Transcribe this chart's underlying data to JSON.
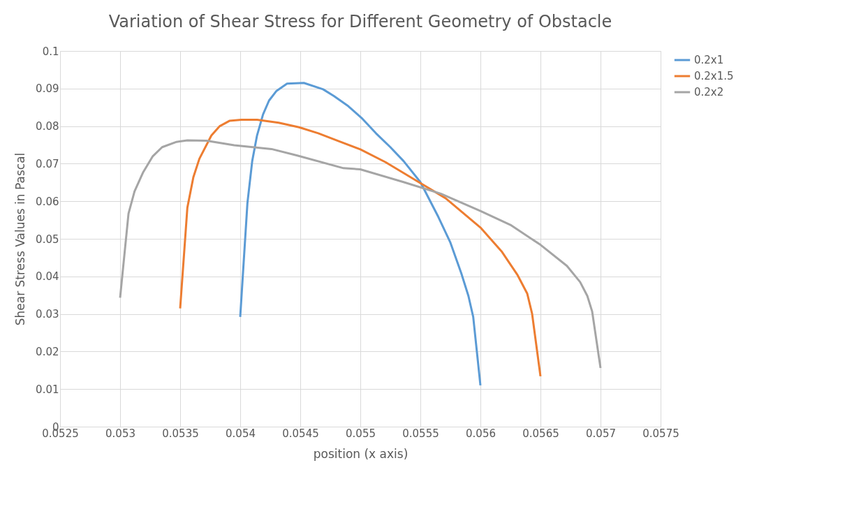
{
  "chart_data": {
    "type": "line",
    "title": "Variation of Shear Stress for Different Geometry of Obstacle",
    "xlabel": "position (x axis)",
    "ylabel": "Shear Stress Values in Pascal",
    "xlim": [
      0.0525,
      0.0575
    ],
    "xticks": [
      0.0525,
      0.053,
      0.0535,
      0.054,
      0.0545,
      0.055,
      0.0555,
      0.056,
      0.0565,
      0.057,
      0.0575
    ],
    "ylim": [
      0,
      0.1
    ],
    "yticks": [
      0,
      0.01,
      0.02,
      0.03,
      0.04,
      0.05,
      0.06,
      0.07,
      0.08,
      0.09,
      0.1
    ],
    "grid": true,
    "legend": "right",
    "marker": "none",
    "line_style": "solid",
    "series": [
      {
        "name": "0.2x1",
        "color": "#5b9bd5",
        "x": [
          0.054,
          0.05406,
          0.0541,
          0.05414,
          0.05419,
          0.05424,
          0.0543,
          0.05439,
          0.05453,
          0.05469,
          0.05478,
          0.0549,
          0.05501,
          0.05513,
          0.05525,
          0.05536,
          0.0555,
          0.05565,
          0.05575,
          0.05584,
          0.0559,
          0.05594,
          0.056
        ],
        "values": [
          0.0292,
          0.0595,
          0.0707,
          0.0775,
          0.0831,
          0.0868,
          0.0893,
          0.0913,
          0.0915,
          0.0898,
          0.088,
          0.0853,
          0.0822,
          0.0781,
          0.0744,
          0.0707,
          0.0651,
          0.0558,
          0.049,
          0.0409,
          0.0348,
          0.0292,
          0.011
        ]
      },
      {
        "name": "0.2x1.5",
        "color": "#ed7d31",
        "x": [
          0.0535,
          0.05356,
          0.05361,
          0.05366,
          0.05376,
          0.05383,
          0.05391,
          0.05401,
          0.05414,
          0.05432,
          0.05449,
          0.05465,
          0.05482,
          0.055,
          0.05521,
          0.05544,
          0.05571,
          0.056,
          0.05618,
          0.05631,
          0.05639,
          0.05643,
          0.0565
        ],
        "values": [
          0.0315,
          0.0583,
          0.0664,
          0.0713,
          0.0775,
          0.08,
          0.0814,
          0.0817,
          0.0817,
          0.0809,
          0.0797,
          0.0781,
          0.076,
          0.0738,
          0.0704,
          0.066,
          0.0608,
          0.053,
          0.0465,
          0.0403,
          0.0354,
          0.0301,
          0.0134
        ]
      },
      {
        "name": "0.2x2",
        "color": "#a5a5a5",
        "x": [
          0.053,
          0.05307,
          0.05312,
          0.05319,
          0.05327,
          0.05335,
          0.05347,
          0.05356,
          0.05372,
          0.05395,
          0.05426,
          0.05447,
          0.05486,
          0.055,
          0.05536,
          0.05567,
          0.056,
          0.05625,
          0.0565,
          0.05672,
          0.05683,
          0.05689,
          0.05693,
          0.057
        ],
        "values": [
          0.0343,
          0.0567,
          0.0626,
          0.0676,
          0.0719,
          0.0744,
          0.0758,
          0.0762,
          0.0761,
          0.0749,
          0.0739,
          0.0722,
          0.0688,
          0.0685,
          0.0651,
          0.062,
          0.0574,
          0.0537,
          0.0484,
          0.0428,
          0.0385,
          0.0348,
          0.0307,
          0.0156
        ]
      }
    ]
  }
}
